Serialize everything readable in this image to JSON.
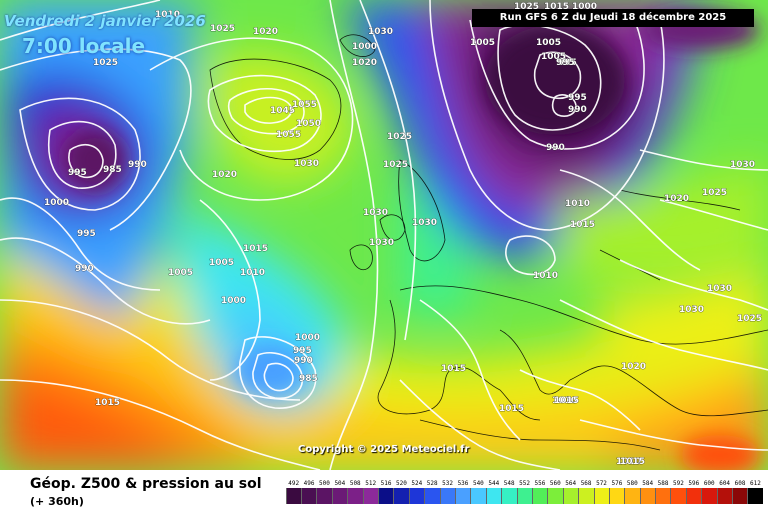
{
  "header": {
    "date": "Vendredi 2 janvier 2026",
    "time": "7:00 locale",
    "run": "Run GFS 6 Z du Jeudi 18 décembre 2025",
    "copyright": "Copyright © 2025 Meteociel.fr"
  },
  "footer": {
    "title": "Géop. Z500 & pression au sol",
    "subtitle": "(+ 360h)"
  },
  "legend": [
    {
      "label": "492",
      "color": "#3a0a40"
    },
    {
      "label": "496",
      "color": "#4a0f52"
    },
    {
      "label": "500",
      "color": "#5b1464"
    },
    {
      "label": "504",
      "color": "#6b1a76"
    },
    {
      "label": "508",
      "color": "#7c2088"
    },
    {
      "label": "512",
      "color": "#8c2a9a"
    },
    {
      "label": "516",
      "color": "#0b0e88"
    },
    {
      "label": "520",
      "color": "#1420b0"
    },
    {
      "label": "524",
      "color": "#1e36d8"
    },
    {
      "label": "528",
      "color": "#2a55f0"
    },
    {
      "label": "532",
      "color": "#3a78f8"
    },
    {
      "label": "536",
      "color": "#4aa0ff"
    },
    {
      "label": "540",
      "color": "#4ac8ff"
    },
    {
      "label": "544",
      "color": "#3ee6f0"
    },
    {
      "label": "548",
      "color": "#36f0c4"
    },
    {
      "label": "552",
      "color": "#3ef090"
    },
    {
      "label": "556",
      "color": "#52ee58"
    },
    {
      "label": "560",
      "color": "#7cee3a"
    },
    {
      "label": "564",
      "color": "#a6f02c"
    },
    {
      "label": "568",
      "color": "#ccf020"
    },
    {
      "label": "572",
      "color": "#eef018"
    },
    {
      "label": "576",
      "color": "#ffd814"
    },
    {
      "label": "580",
      "color": "#ffb412"
    },
    {
      "label": "584",
      "color": "#ff9010"
    },
    {
      "label": "588",
      "color": "#ff700e"
    },
    {
      "label": "592",
      "color": "#ff500c"
    },
    {
      "label": "596",
      "color": "#f2300c"
    },
    {
      "label": "600",
      "color": "#d8180c"
    },
    {
      "label": "604",
      "color": "#b4100a"
    },
    {
      "label": "608",
      "color": "#8a0808"
    },
    {
      "label": "612",
      "color": "#000000"
    }
  ],
  "isobar_labels": [
    {
      "text": "1025"
    },
    {
      "text": "1020"
    },
    {
      "text": "1030"
    },
    {
      "text": "1010"
    },
    {
      "text": "1025"
    },
    {
      "text": "1020"
    },
    {
      "text": "1005"
    },
    {
      "text": "1000"
    },
    {
      "text": "995"
    },
    {
      "text": "1025"
    },
    {
      "text": "1045"
    },
    {
      "text": "1055"
    },
    {
      "text": "1050"
    },
    {
      "text": "1055"
    },
    {
      "text": "1020"
    },
    {
      "text": "1030"
    },
    {
      "text": "995"
    },
    {
      "text": "985"
    },
    {
      "text": "990"
    },
    {
      "text": "1000"
    },
    {
      "text": "995"
    },
    {
      "text": "990"
    },
    {
      "text": "1005"
    },
    {
      "text": "1005"
    },
    {
      "text": "1010"
    },
    {
      "text": "1015"
    },
    {
      "text": "1000"
    },
    {
      "text": "1030"
    },
    {
      "text": "1030"
    },
    {
      "text": "1030"
    },
    {
      "text": "1000"
    },
    {
      "text": "995"
    },
    {
      "text": "990"
    },
    {
      "text": "985"
    },
    {
      "text": "1015"
    },
    {
      "text": "1025"
    },
    {
      "text": "1025"
    },
    {
      "text": "1015"
    },
    {
      "text": "1005"
    },
    {
      "text": "1005"
    },
    {
      "text": "1000"
    },
    {
      "text": "995"
    },
    {
      "text": "995"
    },
    {
      "text": "990"
    },
    {
      "text": "990"
    },
    {
      "text": "1010"
    },
    {
      "text": "1015"
    },
    {
      "text": "1010"
    },
    {
      "text": "1020"
    },
    {
      "text": "1025"
    },
    {
      "text": "1030"
    },
    {
      "text": "1030"
    },
    {
      "text": "1030"
    },
    {
      "text": "1025"
    },
    {
      "text": "1015"
    },
    {
      "text": "1020"
    },
    {
      "text": "1015"
    },
    {
      "text": "1010"
    },
    {
      "text": "1015"
    },
    {
      "text": "1010"
    },
    {
      "text": "1015"
    }
  ]
}
